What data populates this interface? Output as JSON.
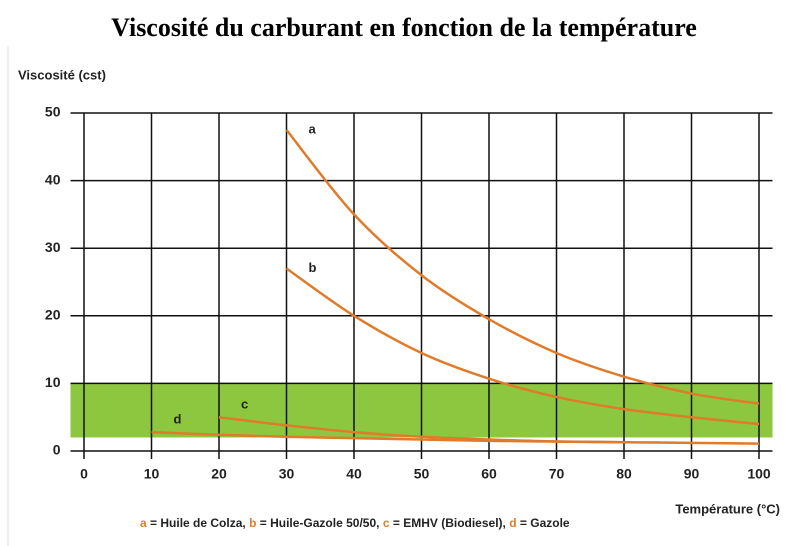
{
  "chart_data": {
    "type": "line",
    "title": "Viscosité du carburant en fonction de la température",
    "ylabel": "Viscosité (cst)",
    "xlabel": "Température (°C)",
    "xlim": [
      -2,
      102
    ],
    "xticks": [
      0,
      10,
      20,
      30,
      40,
      50,
      60,
      70,
      80,
      90,
      100
    ],
    "ylim": [
      0,
      50
    ],
    "yticks": [
      0,
      10,
      20,
      30,
      40,
      50
    ],
    "grid": true,
    "band": {
      "range": [
        2,
        10
      ],
      "color": "#8dc63f"
    },
    "legend_separator": " = ",
    "legend_delimiter": ", ",
    "series": [
      {
        "letter": "a",
        "name": "Huile de Colza",
        "color": "#e07b2a",
        "x": [
          30,
          40,
          50,
          60,
          70,
          80,
          90,
          100
        ],
        "values": [
          47.5,
          35,
          26,
          19.5,
          14.5,
          11,
          8.5,
          7
        ]
      },
      {
        "letter": "b",
        "name": "Huile-Gazole 50/50",
        "color": "#e07b2a",
        "x": [
          30,
          40,
          50,
          60,
          70,
          80,
          90,
          100
        ],
        "values": [
          27,
          20,
          14.5,
          10.7,
          8,
          6.2,
          5,
          4
        ]
      },
      {
        "letter": "c",
        "name": "EMHV (Biodiesel)",
        "color": "#e07b2a",
        "x": [
          20,
          30,
          40,
          50,
          60,
          70,
          80,
          90,
          100
        ],
        "values": [
          5,
          3.8,
          2.8,
          2.1,
          1.7,
          1.4,
          1.3,
          1.2,
          1.1
        ]
      },
      {
        "letter": "d",
        "name": "Gazole",
        "color": "#e07b2a",
        "x": [
          10,
          20,
          30,
          40,
          50,
          60,
          70,
          80
        ],
        "values": [
          2.8,
          2.4,
          2.1,
          1.9,
          1.7,
          1.5,
          1.4,
          1.3
        ]
      }
    ]
  }
}
